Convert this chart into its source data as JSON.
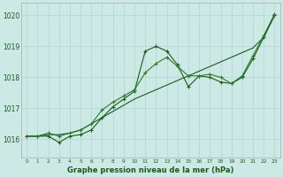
{
  "background_color": "#cce9e5",
  "grid_color": "#b8dbd7",
  "line_color_dark": "#1a5c1a",
  "line_color_medium": "#2d7a2d",
  "xlabel": "Graphe pression niveau de la mer (hPa)",
  "xlim": [
    -0.5,
    23.5
  ],
  "ylim": [
    1015.4,
    1020.4
  ],
  "yticks": [
    1016,
    1017,
    1018,
    1019,
    1020
  ],
  "xticks": [
    0,
    1,
    2,
    3,
    4,
    5,
    6,
    7,
    8,
    9,
    10,
    11,
    12,
    13,
    14,
    15,
    16,
    17,
    18,
    19,
    20,
    21,
    22,
    23
  ],
  "series_straight": {
    "x": [
      0,
      1,
      2,
      3,
      4,
      5,
      6,
      7,
      8,
      9,
      10,
      11,
      12,
      13,
      14,
      15,
      16,
      17,
      18,
      19,
      20,
      21,
      22,
      23
    ],
    "y": [
      1016.1,
      1016.1,
      1016.15,
      1016.15,
      1016.2,
      1016.3,
      1016.5,
      1016.7,
      1016.9,
      1017.1,
      1017.3,
      1017.45,
      1017.6,
      1017.75,
      1017.9,
      1018.05,
      1018.2,
      1018.35,
      1018.5,
      1018.65,
      1018.8,
      1018.95,
      1019.3,
      1020.0
    ]
  },
  "series_wavy": {
    "x": [
      0,
      1,
      2,
      3,
      4,
      5,
      6,
      7,
      8,
      9,
      10,
      11,
      12,
      13,
      14,
      15,
      16,
      17,
      18,
      19,
      20,
      21,
      22,
      23
    ],
    "y": [
      1016.1,
      1016.1,
      1016.1,
      1015.9,
      1016.1,
      1016.15,
      1016.3,
      1016.7,
      1017.05,
      1017.3,
      1017.55,
      1018.85,
      1019.0,
      1018.85,
      1018.4,
      1017.7,
      1018.05,
      1018.0,
      1017.85,
      1017.8,
      1018.0,
      1018.6,
      1019.3,
      1020.0
    ]
  },
  "series_upper": {
    "x": [
      0,
      1,
      2,
      3,
      4,
      5,
      6,
      7,
      8,
      9,
      10,
      11,
      12,
      13,
      14,
      15,
      16,
      17,
      18,
      19,
      20,
      21,
      22,
      23
    ],
    "y": [
      1016.1,
      1016.1,
      1016.2,
      1016.1,
      1016.2,
      1016.3,
      1016.5,
      1016.95,
      1017.2,
      1017.4,
      1017.6,
      1018.15,
      1018.45,
      1018.65,
      1018.35,
      1018.05,
      1018.05,
      1018.1,
      1018.0,
      1017.8,
      1018.05,
      1018.7,
      1019.35,
      1020.05
    ]
  }
}
